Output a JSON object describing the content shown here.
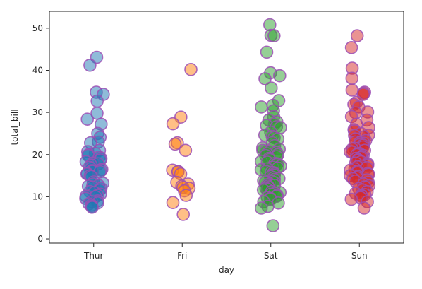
{
  "chart_data": {
    "type": "scatter",
    "subtype": "stripplot",
    "xlabel": "day",
    "ylabel": "total_bill",
    "categories": [
      "Thur",
      "Fri",
      "Sat",
      "Sun"
    ],
    "ylim": [
      -1,
      54
    ],
    "yticks": [
      0,
      10,
      20,
      30,
      40,
      50
    ],
    "grid": false,
    "marker_edge_color": "#9c4fb5",
    "series": [
      {
        "category": "Thur",
        "color": "#1f77b4",
        "values": [
          43.1,
          41.2,
          34.8,
          34.3,
          32.7,
          29.8,
          28.4,
          27.2,
          25.0,
          24.1,
          23.0,
          22.8,
          21.0,
          20.7,
          20.3,
          20.0,
          19.8,
          19.4,
          19.1,
          18.7,
          18.3,
          18.0,
          17.8,
          17.5,
          17.0,
          16.7,
          16.5,
          16.3,
          16.2,
          16.0,
          15.9,
          15.5,
          15.4,
          15.0,
          14.8,
          13.5,
          13.2,
          13.0,
          12.7,
          12.5,
          12.3,
          12.0,
          11.6,
          11.2,
          11.0,
          10.6,
          10.3,
          10.1,
          10.0,
          9.6,
          9.0,
          8.8,
          8.5,
          8.3,
          8.0,
          7.7,
          7.5
        ]
      },
      {
        "category": "Fri",
        "color": "#ff7f0e",
        "values": [
          40.2,
          28.9,
          27.3,
          22.8,
          22.5,
          21.0,
          16.3,
          16.0,
          15.9,
          15.4,
          13.4,
          13.0,
          12.5,
          12.2,
          12.0,
          11.4,
          10.3,
          8.6,
          5.8
        ]
      },
      {
        "category": "Sat",
        "color": "#2ca02c",
        "values": [
          50.8,
          48.3,
          48.2,
          44.3,
          39.4,
          38.7,
          38.0,
          35.8,
          32.8,
          31.7,
          31.3,
          30.4,
          29.0,
          28.2,
          27.8,
          27.2,
          26.9,
          26.6,
          26.4,
          25.3,
          24.6,
          24.3,
          24.0,
          23.7,
          22.8,
          22.1,
          21.6,
          21.3,
          21.0,
          20.8,
          20.7,
          20.5,
          20.2,
          20.0,
          19.8,
          19.5,
          19.1,
          18.8,
          18.4,
          18.2,
          17.9,
          17.8,
          17.6,
          17.3,
          17.0,
          16.8,
          16.6,
          16.4,
          16.0,
          15.8,
          15.7,
          15.4,
          15.1,
          14.8,
          14.5,
          14.3,
          14.1,
          13.8,
          13.6,
          13.4,
          13.3,
          13.0,
          12.8,
          12.7,
          12.5,
          12.2,
          12.0,
          11.8,
          11.6,
          11.2,
          11.0,
          10.8,
          10.6,
          10.3,
          10.1,
          9.8,
          9.6,
          9.4,
          8.8,
          8.5,
          7.7,
          7.3,
          3.1
        ]
      },
      {
        "category": "Sun",
        "color": "#d62728",
        "values": [
          48.2,
          45.4,
          40.5,
          38.1,
          35.3,
          34.8,
          34.6,
          34.3,
          32.4,
          31.9,
          31.3,
          30.1,
          29.9,
          29.0,
          28.2,
          27.2,
          26.4,
          25.9,
          25.6,
          25.0,
          24.6,
          24.5,
          24.2,
          23.7,
          23.3,
          23.0,
          22.8,
          22.7,
          22.4,
          22.2,
          21.8,
          21.5,
          21.3,
          21.0,
          20.7,
          20.6,
          20.3,
          20.1,
          20.0,
          19.8,
          19.5,
          19.3,
          19.1,
          18.8,
          18.6,
          18.3,
          18.0,
          17.8,
          17.5,
          17.3,
          17.1,
          16.9,
          16.6,
          16.3,
          16.0,
          15.7,
          15.5,
          15.3,
          15.0,
          14.8,
          14.5,
          14.3,
          14.0,
          13.7,
          13.4,
          13.0,
          12.6,
          12.3,
          11.9,
          11.6,
          11.2,
          10.8,
          10.5,
          10.3,
          10.1,
          9.8,
          9.4,
          8.8,
          7.3
        ]
      }
    ]
  }
}
